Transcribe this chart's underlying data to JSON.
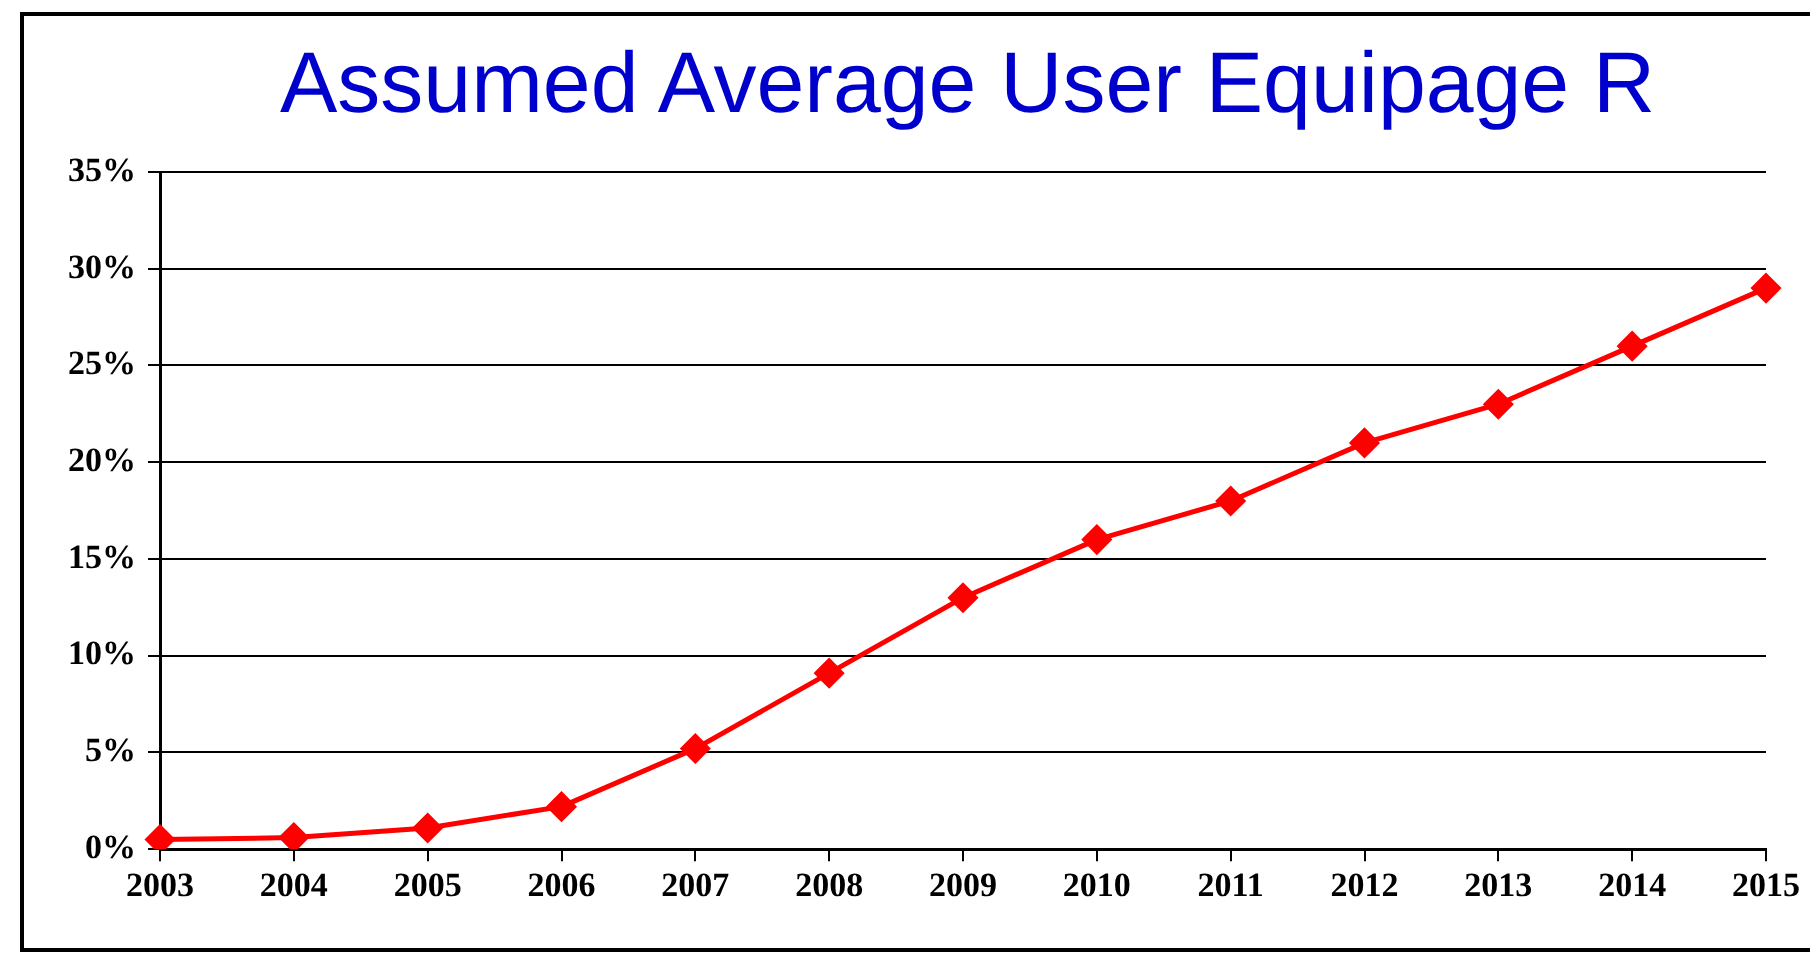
{
  "chart_data": {
    "type": "line",
    "title": "Assumed Average User Equipage R",
    "categories": [
      "2003",
      "2004",
      "2005",
      "2006",
      "2007",
      "2008",
      "2009",
      "2010",
      "2011",
      "2012",
      "2013",
      "2014",
      "2015"
    ],
    "series": [
      {
        "color": "#ff0000",
        "values": [
          0.5,
          0.6,
          1.1,
          2.2,
          5.2,
          9.1,
          13,
          16,
          18,
          21,
          23,
          26,
          29
        ]
      }
    ],
    "ylim": [
      0,
      35
    ],
    "yticks": [
      {
        "value": 0,
        "label": "0%"
      },
      {
        "value": 5,
        "label": "5%"
      },
      {
        "value": 10,
        "label": "10%"
      },
      {
        "value": 15,
        "label": "15%"
      },
      {
        "value": 20,
        "label": "20%"
      },
      {
        "value": 25,
        "label": "25%"
      },
      {
        "value": 30,
        "label": "30%"
      },
      {
        "value": 35,
        "label": "35%"
      }
    ],
    "grid": "y",
    "marker": "diamond",
    "line_style": "solid"
  }
}
